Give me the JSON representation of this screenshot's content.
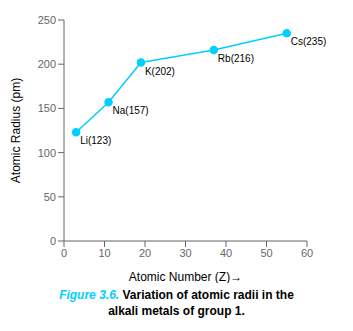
{
  "chart_data": {
    "type": "line",
    "x": [
      3,
      11,
      19,
      37,
      55
    ],
    "values": [
      123,
      157,
      202,
      216,
      235
    ],
    "value_labels": [
      "Li(123)",
      "Na(157)",
      "K(202)",
      "Rb(216)",
      "Cs(235)"
    ],
    "data_labels": true,
    "color": "#00CFFF",
    "marker": "o",
    "xlim": [
      0,
      60
    ],
    "ylim": [
      0,
      250
    ],
    "xticks": [
      0,
      10,
      20,
      30,
      40,
      50,
      60
    ],
    "yticks": [
      0,
      50,
      100,
      150,
      200,
      250
    ],
    "xlabel": "Atomic Number (Z)→",
    "ylabel": "Atomic Radius (pm)",
    "grid": false,
    "annotations": [
      {
        "text": "Figure 3.6.",
        "color": "#00CFFF"
      },
      {
        "text": "Variation of atomic radii in the",
        "color": "#000000"
      },
      {
        "text": "alkali metals of group 1.",
        "color": "#000000"
      }
    ]
  }
}
